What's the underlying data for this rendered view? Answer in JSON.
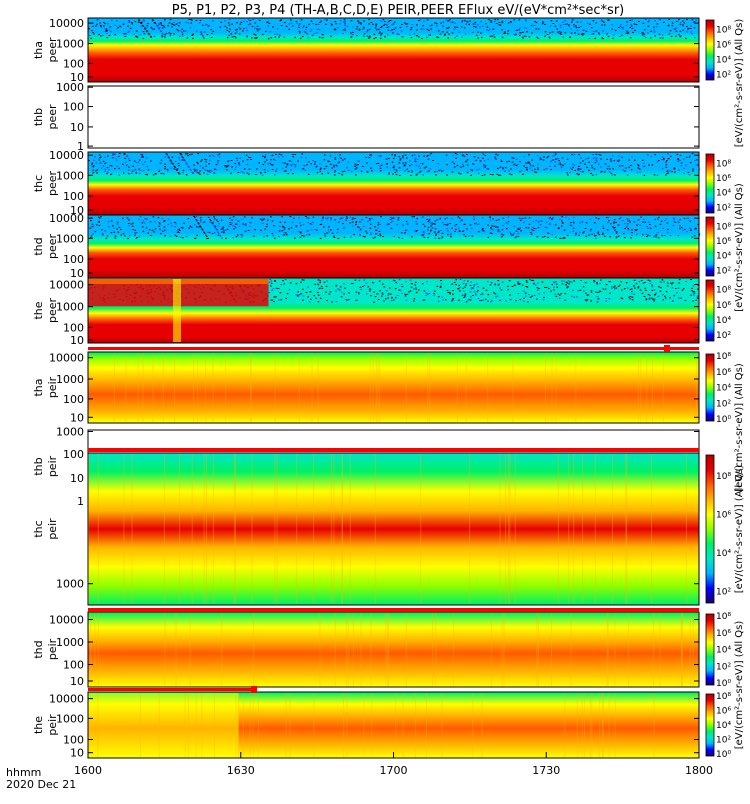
{
  "chart_data": {
    "type": "heatmap",
    "title": "P5, P1, P2, P3, P4 (TH-A,B,C,D,E) PEIR,PEER EFlux eV/(eV*cm²*sec*sr)",
    "x_label_format": "hhmm",
    "date": "2020 Dec 21",
    "x_ticks": [
      "1600",
      "1630",
      "1700",
      "1730",
      "1800"
    ],
    "x_range": [
      0,
      120
    ],
    "colorbar_unit": "[eV/(cm²-s-sr-eV)] (All Qs)",
    "colorbar_ticks": [
      "10²",
      "10⁴",
      "10⁶",
      "10⁸"
    ],
    "colorbar_ticks_low": [
      "10⁰",
      "10²",
      "10⁴",
      "10⁶",
      "10⁸"
    ],
    "panels": [
      {
        "name": "tha-peer",
        "label1": "tha",
        "label2": "peer",
        "y_ticks": [
          "10000",
          "1000",
          "100",
          "10"
        ],
        "has_data": true,
        "kind": "e1",
        "colorbar": "high"
      },
      {
        "name": "thb-peer",
        "label1": "thb",
        "label2": "peer",
        "y_ticks": [
          "1000",
          "100",
          "10",
          "1"
        ],
        "has_data": false,
        "kind": "empty",
        "colorbar": "none"
      },
      {
        "name": "thc-peer",
        "label1": "thc",
        "label2": "peer",
        "y_ticks": [
          "10000",
          "1000",
          "100",
          "10"
        ],
        "has_data": true,
        "kind": "e2",
        "colorbar": "high"
      },
      {
        "name": "thd-peer",
        "label1": "thd",
        "label2": "peer",
        "y_ticks": [
          "10000",
          "1000",
          "100",
          "10"
        ],
        "has_data": true,
        "kind": "e2",
        "colorbar": "high"
      },
      {
        "name": "the-peer",
        "label1": "the",
        "label2": "peer",
        "y_ticks": [
          "10000",
          "1000",
          "100",
          "10"
        ],
        "has_data": true,
        "kind": "e3",
        "colorbar": "high"
      },
      {
        "name": "tha-peir",
        "label1": "tha",
        "label2": "peir",
        "y_ticks": [
          "10000",
          "1000",
          "100",
          "10"
        ],
        "has_data": true,
        "kind": "i1",
        "colorbar": "low"
      },
      {
        "name": "thb-peir",
        "label1": "thb",
        "label2": "peir",
        "y_ticks": [
          "1000",
          "100",
          "10",
          "1"
        ],
        "has_data": false,
        "kind": "empty",
        "colorbar": "none"
      },
      {
        "name": "thc-peir",
        "label1": "thc",
        "label2": "peir",
        "y_ticks": [
          "1000"
        ],
        "has_data": true,
        "kind": "i2",
        "colorbar": "high"
      },
      {
        "name": "thd-peir",
        "label1": "thd",
        "label2": "peir",
        "y_ticks": [
          "10000",
          "1000",
          "100",
          "10"
        ],
        "has_data": true,
        "kind": "i3",
        "colorbar": "low"
      },
      {
        "name": "the-peir",
        "label1": "the",
        "label2": "peir",
        "y_ticks": [
          "10000",
          "1000",
          "100",
          "10"
        ],
        "has_data": true,
        "kind": "i4",
        "colorbar": "low"
      }
    ],
    "colors": {
      "frame": "#000000",
      "flag_bar": "#ff0000",
      "colormap": [
        "#1a006e",
        "#0000ff",
        "#00b4ff",
        "#00e6c8",
        "#00f064",
        "#8cff00",
        "#ffff00",
        "#ffb400",
        "#ff5a00",
        "#e60000",
        "#b40000"
      ]
    }
  }
}
